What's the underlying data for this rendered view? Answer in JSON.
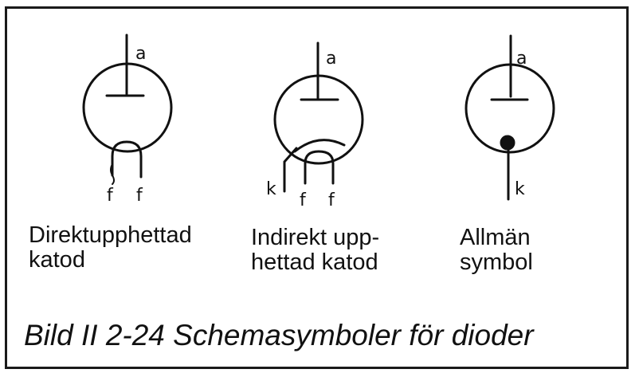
{
  "figure": {
    "caption": "Bild II 2-24  Schemasymboler för dioder",
    "symbols": [
      {
        "anode_label": "a",
        "pin_labels": [
          "f",
          "f"
        ],
        "label_lines": [
          "Direktupphettad",
          "katod"
        ]
      },
      {
        "anode_label": "a",
        "pin_labels": [
          "k",
          "f",
          "f"
        ],
        "label_lines": [
          "Indirekt upp-",
          "hettad katod"
        ]
      },
      {
        "anode_label": "a",
        "pin_labels": [
          "k"
        ],
        "label_lines": [
          "Allmän",
          "symbol"
        ]
      }
    ]
  }
}
